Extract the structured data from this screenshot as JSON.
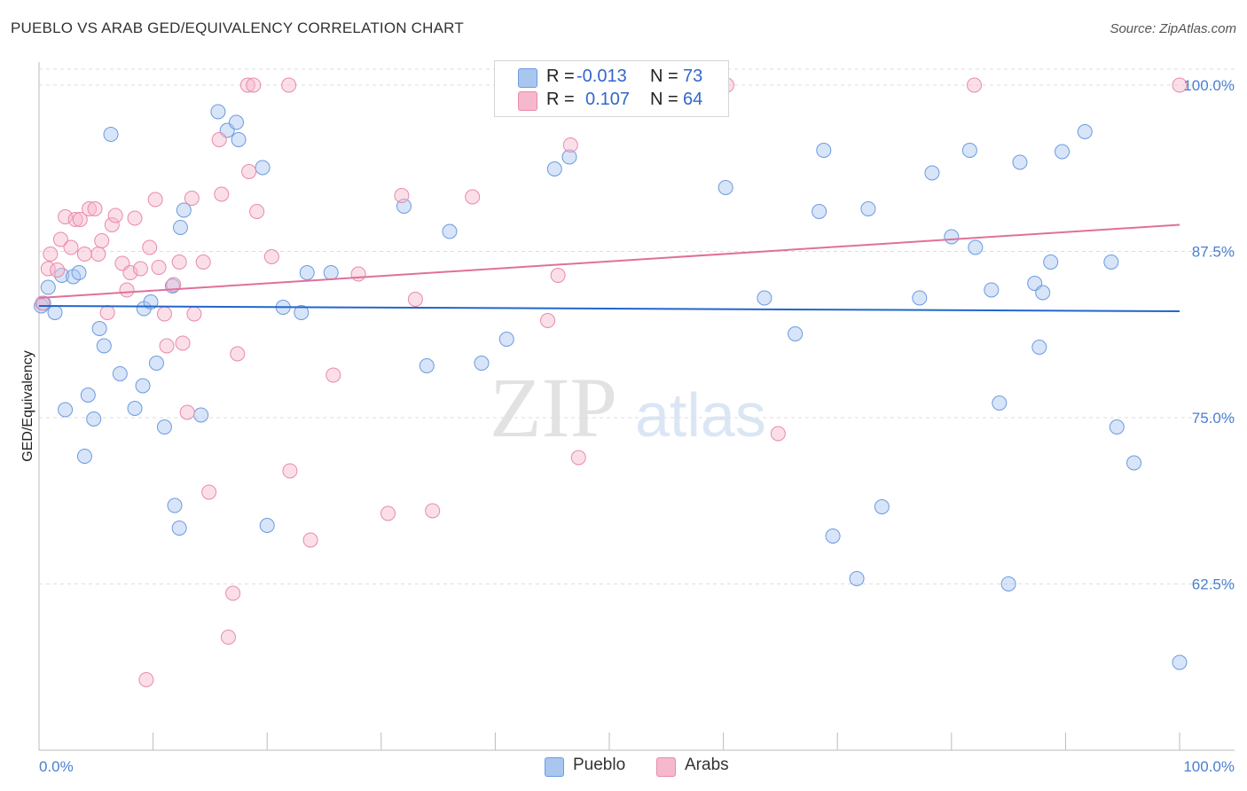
{
  "title": "PUEBLO VS ARAB GED/EQUIVALENCY CORRELATION CHART",
  "source": "Source: ZipAtlas.com",
  "watermark": {
    "zip": "ZIP",
    "atlas": "atlas"
  },
  "legend": {
    "rows": [
      {
        "r_label": "R =",
        "r_value": "-0.013",
        "n_label": "N =",
        "n_value": "73"
      },
      {
        "r_label": "R =",
        "r_value": "0.107",
        "n_label": "N =",
        "n_value": "64"
      }
    ]
  },
  "bottom_legend": {
    "pueblo": "Pueblo",
    "arabs": "Arabs"
  },
  "chart_data": {
    "type": "scatter",
    "title": "PUEBLO VS ARAB GED/EQUIVALENCY CORRELATION CHART",
    "xlabel": "",
    "ylabel": "GED/Equivalency",
    "xlim": [
      0,
      100
    ],
    "ylim": [
      50,
      101.5
    ],
    "x_tick_labels": [
      "0.0%",
      "100.0%"
    ],
    "y_ticks": [
      62.5,
      75.0,
      87.5,
      100.0
    ],
    "y_tick_labels": [
      "62.5%",
      "75.0%",
      "87.5%",
      "100.0%"
    ],
    "grid": "horizontal dashed",
    "legend_position": "top-center",
    "series": [
      {
        "name": "Pueblo",
        "color": "#a9c6ef",
        "stroke": "#6b9be0",
        "trend_color": "#2266cc",
        "trend": {
          "x": [
            0,
            100
          ],
          "y": [
            83.4,
            83.0
          ]
        },
        "points": [
          [
            0.2,
            83.4
          ],
          [
            0.8,
            84.8
          ],
          [
            1.4,
            82.9
          ],
          [
            2.0,
            85.7
          ],
          [
            2.3,
            75.6
          ],
          [
            3.0,
            85.6
          ],
          [
            3.5,
            85.9
          ],
          [
            4.0,
            72.1
          ],
          [
            4.3,
            76.7
          ],
          [
            4.8,
            74.9
          ],
          [
            5.3,
            81.7
          ],
          [
            5.7,
            80.4
          ],
          [
            6.3,
            96.3
          ],
          [
            7.1,
            78.3
          ],
          [
            8.4,
            75.7
          ],
          [
            9.1,
            77.4
          ],
          [
            9.2,
            83.2
          ],
          [
            9.8,
            83.7
          ],
          [
            10.3,
            79.1
          ],
          [
            11.0,
            74.3
          ],
          [
            11.7,
            84.9
          ],
          [
            11.9,
            68.4
          ],
          [
            12.3,
            66.7
          ],
          [
            12.4,
            89.3
          ],
          [
            12.7,
            90.6
          ],
          [
            14.2,
            75.2
          ],
          [
            15.7,
            98.0
          ],
          [
            16.5,
            96.6
          ],
          [
            17.3,
            97.2
          ],
          [
            17.5,
            95.9
          ],
          [
            19.6,
            93.8
          ],
          [
            20.0,
            66.9
          ],
          [
            21.4,
            83.3
          ],
          [
            23.0,
            82.9
          ],
          [
            23.5,
            85.9
          ],
          [
            25.6,
            85.9
          ],
          [
            32.0,
            90.9
          ],
          [
            34.0,
            78.9
          ],
          [
            36.0,
            89.0
          ],
          [
            38.8,
            79.1
          ],
          [
            41.0,
            80.9
          ],
          [
            42.2,
            100.0
          ],
          [
            45.2,
            93.7
          ],
          [
            46.5,
            94.6
          ],
          [
            60.2,
            92.3
          ],
          [
            63.6,
            84.0
          ],
          [
            66.3,
            81.3
          ],
          [
            68.4,
            90.5
          ],
          [
            68.8,
            95.1
          ],
          [
            69.6,
            66.1
          ],
          [
            71.7,
            62.9
          ],
          [
            72.7,
            90.7
          ],
          [
            73.9,
            68.3
          ],
          [
            77.2,
            84.0
          ],
          [
            78.3,
            93.4
          ],
          [
            80.0,
            88.6
          ],
          [
            81.6,
            95.1
          ],
          [
            82.1,
            87.8
          ],
          [
            83.5,
            84.6
          ],
          [
            84.2,
            76.1
          ],
          [
            85.0,
            62.5
          ],
          [
            86.0,
            94.2
          ],
          [
            87.3,
            85.1
          ],
          [
            87.7,
            80.3
          ],
          [
            88.0,
            84.4
          ],
          [
            88.7,
            86.7
          ],
          [
            89.7,
            95.0
          ],
          [
            91.7,
            96.5
          ],
          [
            94.0,
            86.7
          ],
          [
            94.5,
            74.3
          ],
          [
            96.0,
            71.6
          ],
          [
            100.0,
            56.6
          ],
          [
            0.4,
            83.6
          ]
        ]
      },
      {
        "name": "Arabs",
        "color": "#f6b8cc",
        "stroke": "#e98aaa",
        "trend_color": "#e0709a",
        "trend": {
          "x": [
            0,
            100
          ],
          "y": [
            84.0,
            89.5
          ]
        },
        "points": [
          [
            0.3,
            83.6
          ],
          [
            0.8,
            86.2
          ],
          [
            1.0,
            87.3
          ],
          [
            1.6,
            86.1
          ],
          [
            1.9,
            88.4
          ],
          [
            2.3,
            90.1
          ],
          [
            2.8,
            87.8
          ],
          [
            3.2,
            89.9
          ],
          [
            3.6,
            89.9
          ],
          [
            4.0,
            87.3
          ],
          [
            4.4,
            90.7
          ],
          [
            4.9,
            90.7
          ],
          [
            5.2,
            87.3
          ],
          [
            5.5,
            88.3
          ],
          [
            6.0,
            82.9
          ],
          [
            6.4,
            89.5
          ],
          [
            6.7,
            90.2
          ],
          [
            7.3,
            86.6
          ],
          [
            7.7,
            84.6
          ],
          [
            8.0,
            85.9
          ],
          [
            8.4,
            90.0
          ],
          [
            8.9,
            86.2
          ],
          [
            9.4,
            55.3
          ],
          [
            9.7,
            87.8
          ],
          [
            10.2,
            91.4
          ],
          [
            10.5,
            86.3
          ],
          [
            11.0,
            82.8
          ],
          [
            11.2,
            80.4
          ],
          [
            11.8,
            85.0
          ],
          [
            12.3,
            86.7
          ],
          [
            12.6,
            80.6
          ],
          [
            13.0,
            75.4
          ],
          [
            13.4,
            91.5
          ],
          [
            13.6,
            82.8
          ],
          [
            14.4,
            86.7
          ],
          [
            14.9,
            69.4
          ],
          [
            15.8,
            95.9
          ],
          [
            16.0,
            91.8
          ],
          [
            16.6,
            58.5
          ],
          [
            17.0,
            61.8
          ],
          [
            17.4,
            79.8
          ],
          [
            18.3,
            100.0
          ],
          [
            18.4,
            93.5
          ],
          [
            18.8,
            100.0
          ],
          [
            19.1,
            90.5
          ],
          [
            20.4,
            87.1
          ],
          [
            21.9,
            100.0
          ],
          [
            22.0,
            71.0
          ],
          [
            23.8,
            65.8
          ],
          [
            25.8,
            78.2
          ],
          [
            28.0,
            85.8
          ],
          [
            30.6,
            67.8
          ],
          [
            31.8,
            91.7
          ],
          [
            33.0,
            83.9
          ],
          [
            34.5,
            68.0
          ],
          [
            38.0,
            91.6
          ],
          [
            44.6,
            82.3
          ],
          [
            45.5,
            85.7
          ],
          [
            46.6,
            95.5
          ],
          [
            47.3,
            72.0
          ],
          [
            60.3,
            100.0
          ],
          [
            64.8,
            73.8
          ],
          [
            82.0,
            100.0
          ],
          [
            100.0,
            100.0
          ]
        ]
      }
    ]
  }
}
